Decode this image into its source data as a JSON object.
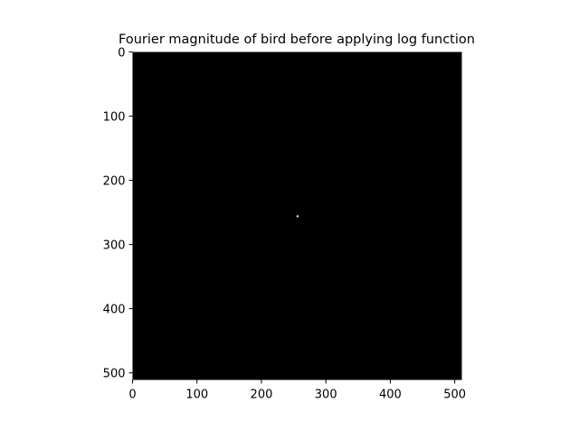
{
  "chart_data": {
    "type": "heatmap",
    "title": "Fourier magnitude of bird before applying log function",
    "xlabel": "",
    "ylabel": "",
    "xlim": [
      0,
      511
    ],
    "ylim": [
      511,
      0
    ],
    "x_ticks": [
      0,
      100,
      200,
      300,
      400,
      500
    ],
    "y_ticks": [
      0,
      100,
      200,
      300,
      400,
      500
    ],
    "x_tick_labels": [
      "0",
      "100",
      "200",
      "300",
      "400",
      "500"
    ],
    "y_tick_labels": [
      "0",
      "100",
      "200",
      "300",
      "400",
      "500"
    ],
    "background_color": "#000000",
    "grid": false,
    "bright_points": [
      {
        "x": 256,
        "y": 256,
        "color": "#ffffff"
      }
    ]
  }
}
